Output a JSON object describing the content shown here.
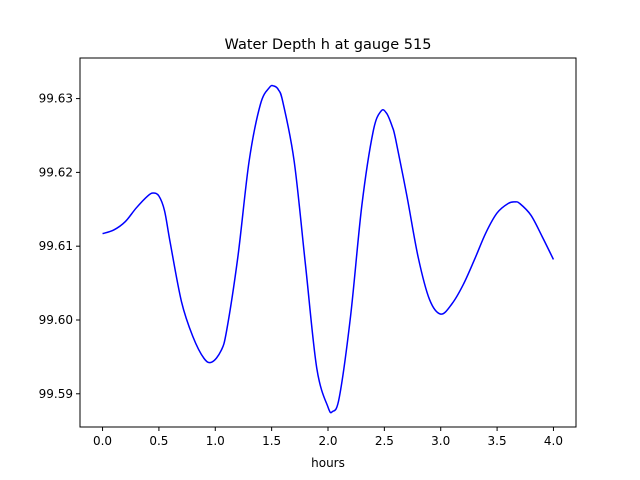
{
  "chart_data": {
    "type": "line",
    "title": "Water Depth h at gauge 515",
    "xlabel": "hours",
    "ylabel": "",
    "xlim": [
      -0.2,
      4.2
    ],
    "ylim": [
      99.5855,
      99.6355
    ],
    "xticks": [
      0.0,
      0.5,
      1.0,
      1.5,
      2.0,
      2.5,
      3.0,
      3.5,
      4.0
    ],
    "xtick_labels": [
      "0.0",
      "0.5",
      "1.0",
      "1.5",
      "2.0",
      "2.5",
      "3.0",
      "3.5",
      "4.0"
    ],
    "yticks": [
      99.59,
      99.6,
      99.61,
      99.62,
      99.63
    ],
    "ytick_labels": [
      "99.59",
      "99.60",
      "99.61",
      "99.62",
      "99.63"
    ],
    "grid": false,
    "series": [
      {
        "color": "#0000ff",
        "x": [
          0.0,
          0.1,
          0.2,
          0.3,
          0.4,
          0.45,
          0.5,
          0.55,
          0.6,
          0.7,
          0.8,
          0.9,
          0.97,
          1.05,
          1.1,
          1.2,
          1.3,
          1.4,
          1.48,
          1.52,
          1.56,
          1.6,
          1.7,
          1.8,
          1.9,
          2.0,
          2.04,
          2.1,
          2.2,
          2.3,
          2.4,
          2.47,
          2.52,
          2.57,
          2.6,
          2.7,
          2.8,
          2.9,
          3.0,
          3.1,
          3.2,
          3.3,
          3.4,
          3.5,
          3.6,
          3.66,
          3.7,
          3.8,
          3.9,
          4.0
        ],
        "y": [
          99.6117,
          99.6122,
          99.6133,
          99.6152,
          99.6168,
          99.6172,
          99.6168,
          99.6148,
          99.6105,
          99.6025,
          99.5978,
          99.5948,
          99.5943,
          99.5958,
          99.5985,
          99.6085,
          99.6215,
          99.6292,
          99.6315,
          99.6317,
          99.6312,
          99.6295,
          99.6215,
          99.6075,
          99.5935,
          99.5882,
          99.5876,
          99.5895,
          99.6005,
          99.6155,
          99.6255,
          99.6283,
          99.628,
          99.6262,
          99.6245,
          99.6168,
          99.6085,
          99.6028,
          99.6008,
          99.6022,
          99.6048,
          99.6082,
          99.6118,
          99.6145,
          99.6158,
          99.616,
          99.6158,
          99.6142,
          99.6113,
          99.6082
        ]
      }
    ]
  }
}
